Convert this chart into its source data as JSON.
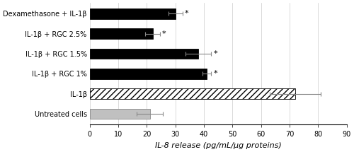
{
  "categories": [
    "Dexamethasone + IL-1β",
    "IL-1β + RGC 2.5%",
    "IL-1β + RGC 1.5%",
    "IL-1β + RGC 1%",
    "IL-1β",
    "Untreated cells"
  ],
  "values": [
    30,
    22,
    38,
    41,
    72,
    21
  ],
  "errors": [
    2.5,
    2.5,
    4.5,
    1.5,
    9.0,
    4.5
  ],
  "bar_colors": [
    "black",
    "black",
    "black",
    "black",
    "white",
    "lightgray"
  ],
  "hatch_pattern": [
    "",
    "",
    "",
    "",
    "////",
    ""
  ],
  "star_labels": [
    true,
    true,
    true,
    true,
    false,
    false
  ],
  "xlabel": "IL-8 release (pg/mL/μg proteins)",
  "xlim": [
    0,
    90
  ],
  "xticks": [
    0,
    10,
    20,
    30,
    40,
    50,
    60,
    70,
    80,
    90
  ],
  "bar_height": 0.52,
  "figsize": [
    5.0,
    2.15
  ],
  "dpi": 100
}
